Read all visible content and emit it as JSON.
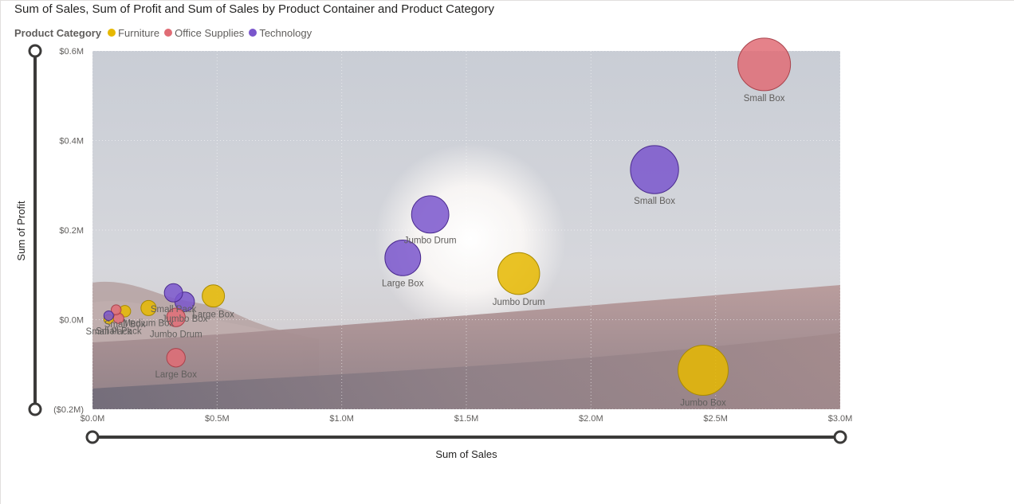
{
  "visual": {
    "title": "Sum of Sales, Sum of Profit and Sum of Sales by Product Container and Product Category",
    "legend_title": "Product Category"
  },
  "chart_data": {
    "type": "scatter",
    "subtype": "bubble",
    "title": "Sum of Sales, Sum of Profit and Sum of Sales by Product Container and Product Category",
    "xlabel": "Sum of Sales",
    "ylabel": "Sum of Profit",
    "size_measure": "Sum of Sales",
    "legend_position": "top-left",
    "grid": true,
    "xlim": [
      0,
      3000000
    ],
    "ylim": [
      -200000,
      600000
    ],
    "x_ticks": [
      {
        "value": 0,
        "label": "$0.0M"
      },
      {
        "value": 500000,
        "label": "$0.5M"
      },
      {
        "value": 1000000,
        "label": "$1.0M"
      },
      {
        "value": 1500000,
        "label": "$1.5M"
      },
      {
        "value": 2000000,
        "label": "$2.0M"
      },
      {
        "value": 2500000,
        "label": "$2.5M"
      },
      {
        "value": 3000000,
        "label": "$3.0M"
      }
    ],
    "y_ticks": [
      {
        "value": -200000,
        "label": "($0.2M)"
      },
      {
        "value": 0,
        "label": "$0.0M"
      },
      {
        "value": 200000,
        "label": "$0.2M"
      },
      {
        "value": 400000,
        "label": "$0.4M"
      },
      {
        "value": 600000,
        "label": "$0.6M"
      }
    ],
    "series": [
      {
        "name": "Furniture",
        "color": "#E6B800",
        "points": [
          {
            "label": "Jumbo Box",
            "x": 2450000,
            "y": -113000
          },
          {
            "label": "Jumbo Drum",
            "x": 1710000,
            "y": 103000
          },
          {
            "label": "Large Box",
            "x": 485000,
            "y": 53000
          },
          {
            "label": "Medium Box",
            "x": 225000,
            "y": 26000
          },
          {
            "label": "Small Box",
            "x": 130000,
            "y": 19000
          },
          {
            "label": "Small Pack",
            "x": 65000,
            "y": 1000
          }
        ]
      },
      {
        "name": "Office Supplies",
        "color": "#E06C75",
        "points": [
          {
            "label": "Small Box",
            "x": 2695000,
            "y": 570000
          },
          {
            "label": "Large Box",
            "x": 335000,
            "y": -85000
          },
          {
            "label": "Jumbo Drum",
            "x": 335000,
            "y": 5000
          },
          {
            "label": "Small Pack",
            "x": 105000,
            "y": 3000
          },
          {
            "label": "Medium Box",
            "x": 95000,
            "y": 22000
          }
        ]
      },
      {
        "name": "Technology",
        "color": "#7A56CC",
        "points": [
          {
            "label": "Small Box",
            "x": 2255000,
            "y": 335000
          },
          {
            "label": "Jumbo Drum",
            "x": 1355000,
            "y": 235000
          },
          {
            "label": "Large Box",
            "x": 1245000,
            "y": 138000
          },
          {
            "label": "Jumbo Box",
            "x": 370000,
            "y": 40000
          },
          {
            "label": "Small Pack",
            "x": 325000,
            "y": 60000
          },
          {
            "label": "Medium Box",
            "x": 65000,
            "y": 9000
          }
        ]
      }
    ],
    "visible_point_labels": [
      {
        "text": "Small Box",
        "series": 1,
        "point": 0
      },
      {
        "text": "Small Box",
        "series": 2,
        "point": 0
      },
      {
        "text": "Jumbo Drum",
        "series": 2,
        "point": 1
      },
      {
        "text": "Large Box",
        "series": 2,
        "point": 2
      },
      {
        "text": "Jumbo Drum",
        "series": 0,
        "point": 1
      },
      {
        "text": "Jumbo Box",
        "series": 0,
        "point": 0
      },
      {
        "text": "Small Pack",
        "series": 2,
        "point": 4
      },
      {
        "text": "Jumbo Box",
        "series": 2,
        "point": 3
      },
      {
        "text": "Small Pack",
        "series": 1,
        "point": 3
      },
      {
        "text": "Medium Box",
        "series": 0,
        "point": 3
      },
      {
        "text": "Large Box",
        "series": 0,
        "point": 2
      },
      {
        "text": "Small Box",
        "series": 0,
        "point": 4
      },
      {
        "text": "Small Pack",
        "series": 0,
        "point": 5
      },
      {
        "text": "Jumbo Drum",
        "series": 1,
        "point": 2
      },
      {
        "text": "Large Box",
        "series": 1,
        "point": 1
      }
    ]
  }
}
